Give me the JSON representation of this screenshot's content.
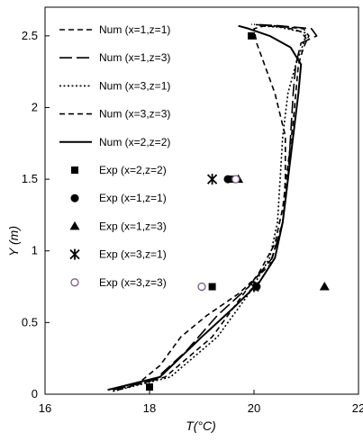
{
  "chart_data": {
    "type": "line",
    "xlabel": "T(°C)",
    "ylabel": "Y (m)",
    "xlim": [
      16,
      22
    ],
    "ylim": [
      0,
      2.7
    ],
    "x_ticks": [
      "16",
      "18",
      "20",
      "22"
    ],
    "y_ticks": [
      "0",
      "0.5",
      "1",
      "1.5",
      "2",
      "2.5"
    ],
    "grid": false,
    "legend_position": "top-left inside",
    "series": [
      {
        "name": "Num (x=1,z=1)",
        "kind": "line",
        "style": "dash-short",
        "color": "#000000",
        "points": [
          [
            17.4,
            0.03
          ],
          [
            18.3,
            0.12
          ],
          [
            19.2,
            0.4
          ],
          [
            19.7,
            0.65
          ],
          [
            20.1,
            0.85
          ],
          [
            20.4,
            1.05
          ],
          [
            20.55,
            1.3
          ],
          [
            20.65,
            1.6
          ],
          [
            20.75,
            1.9
          ],
          [
            20.8,
            2.1
          ],
          [
            20.85,
            2.3
          ],
          [
            20.95,
            2.42
          ],
          [
            21.05,
            2.5
          ],
          [
            20.95,
            2.55
          ],
          [
            20.4,
            2.57
          ],
          [
            19.95,
            2.58
          ]
        ]
      },
      {
        "name": "Num (x=1,z=3)",
        "kind": "line",
        "style": "dash-long",
        "color": "#000000",
        "points": [
          [
            17.3,
            0.03
          ],
          [
            18.1,
            0.1
          ],
          [
            18.7,
            0.3
          ],
          [
            19.3,
            0.55
          ],
          [
            19.9,
            0.75
          ],
          [
            20.35,
            0.95
          ],
          [
            20.55,
            1.2
          ],
          [
            20.65,
            1.5
          ],
          [
            20.7,
            1.8
          ],
          [
            20.75,
            2.1
          ],
          [
            20.8,
            2.3
          ],
          [
            20.9,
            2.45
          ],
          [
            21.2,
            2.5
          ],
          [
            21.1,
            2.55
          ],
          [
            20.5,
            2.57
          ],
          [
            20.0,
            2.58
          ]
        ]
      },
      {
        "name": "Num (x=3,z=1)",
        "kind": "line",
        "style": "dotted",
        "color": "#000000",
        "points": [
          [
            17.3,
            0.02
          ],
          [
            18.4,
            0.12
          ],
          [
            19.3,
            0.4
          ],
          [
            19.9,
            0.7
          ],
          [
            20.3,
            0.95
          ],
          [
            20.45,
            1.2
          ],
          [
            20.5,
            1.5
          ],
          [
            20.55,
            1.8
          ],
          [
            20.65,
            2.1
          ],
          [
            20.8,
            2.3
          ],
          [
            20.95,
            2.45
          ],
          [
            21.0,
            2.52
          ],
          [
            20.5,
            2.56
          ],
          [
            20.1,
            2.57
          ]
        ]
      },
      {
        "name": "Num (x=3,z=3)",
        "kind": "line",
        "style": "dash-short",
        "color": "#000000",
        "points": [
          [
            17.2,
            0.03
          ],
          [
            17.8,
            0.08
          ],
          [
            18.2,
            0.2
          ],
          [
            18.6,
            0.4
          ],
          [
            19.1,
            0.55
          ],
          [
            19.7,
            0.7
          ],
          [
            20.3,
            0.9
          ],
          [
            20.55,
            1.2
          ],
          [
            20.6,
            1.5
          ],
          [
            20.6,
            1.8
          ],
          [
            20.4,
            2.1
          ],
          [
            20.2,
            2.3
          ],
          [
            20.05,
            2.45
          ],
          [
            20.0,
            2.55
          ],
          [
            20.2,
            2.57
          ],
          [
            20.6,
            2.56
          ],
          [
            20.9,
            2.53
          ],
          [
            21.0,
            2.48
          ]
        ]
      },
      {
        "name": "Num (x=2,z=2)",
        "kind": "line",
        "style": "solid",
        "color": "#000000",
        "points": [
          [
            17.2,
            0.03
          ],
          [
            18.2,
            0.12
          ],
          [
            19.0,
            0.4
          ],
          [
            19.6,
            0.6
          ],
          [
            20.1,
            0.78
          ],
          [
            20.4,
            0.95
          ],
          [
            20.55,
            1.2
          ],
          [
            20.65,
            1.5
          ],
          [
            20.75,
            1.8
          ],
          [
            20.85,
            2.1
          ],
          [
            20.9,
            2.3
          ],
          [
            20.7,
            2.42
          ],
          [
            20.3,
            2.5
          ],
          [
            19.9,
            2.55
          ],
          [
            19.7,
            2.57
          ]
        ]
      },
      {
        "name": "Exp (x=2,z=2)",
        "kind": "marker",
        "marker": "filled-square",
        "points": [
          [
            19.95,
            2.5
          ],
          [
            19.55,
            1.5
          ],
          [
            19.2,
            0.75
          ],
          [
            18.0,
            0.05
          ]
        ]
      },
      {
        "name": "Exp (x=1,z=1)",
        "kind": "marker",
        "marker": "filled-circle",
        "points": [
          [
            19.5,
            1.5
          ],
          [
            20.05,
            0.75
          ]
        ]
      },
      {
        "name": "Exp (x=1,z=3)",
        "kind": "marker",
        "marker": "filled-triangle",
        "points": [
          [
            19.7,
            1.5
          ],
          [
            21.35,
            0.75
          ]
        ]
      },
      {
        "name": "Exp (x=3,z=1)",
        "kind": "marker",
        "marker": "asterisk",
        "points": [
          [
            19.2,
            1.5
          ],
          [
            20.0,
            0.75
          ]
        ]
      },
      {
        "name": "Exp (x=3,z=3)",
        "kind": "marker",
        "marker": "open-circle",
        "points": [
          [
            19.65,
            1.5
          ],
          [
            19.0,
            0.75
          ]
        ]
      }
    ]
  }
}
